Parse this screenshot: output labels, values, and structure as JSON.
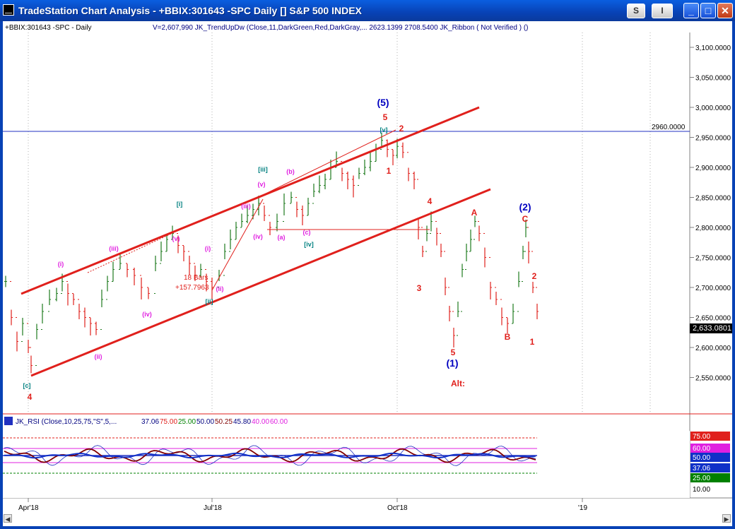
{
  "window": {
    "title": "TradeStation Chart Analysis - +BBIX:301643 -SPC Daily [] S&P 500 INDEX",
    "btn_s": "S",
    "btn_i": "I",
    "btn_min": "_",
    "btn_max": "□",
    "btn_close": "✕"
  },
  "chart_header": {
    "symbol": "+BBIX:301643 -SPC - Daily",
    "indicators": "V=2,607,990   JK_TrendUpDw (Close,11,DarkGreen,Red,DarkGray,...   2623.1399   2708.5400   JK_Ribbon ( Not Verified ) ()"
  },
  "price_axis": {
    "ticks": [
      "3,100.0000",
      "3,050.0000",
      "3,000.0000",
      "2,950.0000",
      "2,900.0000",
      "2,850.0000",
      "2,800.0000",
      "2,750.0000",
      "2,700.0000",
      "2,650.0000",
      "2,600.0000",
      "2,550.0000"
    ],
    "current_price": "2,633.0801",
    "hline_label": "2960.0000"
  },
  "time_axis": {
    "labels": [
      "Apr'18",
      "Jul'18",
      "Oct'18",
      "'19"
    ]
  },
  "wave_labels": [
    {
      "text": "[c]",
      "color": "#008080"
    },
    {
      "text": "4",
      "color": "#E0201C"
    },
    {
      "text": "i",
      "color": "#E020E0"
    },
    {
      "text": "ii",
      "color": "#E020E0"
    },
    {
      "text": "iii",
      "color": "#E020E0"
    },
    {
      "text": "iv",
      "color": "#E020E0"
    },
    {
      "text": "v",
      "color": "#E020E0"
    },
    {
      "text": "[i]",
      "color": "#008080"
    },
    {
      "text": "[ii]",
      "color": "#008080"
    },
    {
      "text": "i",
      "color": "#E020E0"
    },
    {
      "text": "ii",
      "color": "#E020E0"
    },
    {
      "text": "iii",
      "color": "#E020E0"
    },
    {
      "text": "iv",
      "color": "#E020E0"
    },
    {
      "text": "v",
      "color": "#E020E0"
    },
    {
      "text": "[iii]",
      "color": "#008080"
    },
    {
      "text": "a",
      "color": "#E020E0"
    },
    {
      "text": "b",
      "color": "#E020E0"
    },
    {
      "text": "c",
      "color": "#E020E0"
    },
    {
      "text": "[iv]",
      "color": "#008080"
    },
    {
      "text": "[v]",
      "color": "#008080"
    },
    {
      "text": "(5)",
      "color": "#0000C0"
    },
    {
      "text": "5",
      "color": "#E0201C"
    },
    {
      "text": "1",
      "color": "#E0201C"
    },
    {
      "text": "2",
      "color": "#E0201C"
    },
    {
      "text": "3",
      "color": "#E0201C"
    },
    {
      "text": "4",
      "color": "#E0201C"
    },
    {
      "text": "5",
      "color": "#E0201C"
    },
    {
      "text": "(1)",
      "color": "#0000C0"
    },
    {
      "text": "Alt:",
      "color": "#E0201C"
    },
    {
      "text": "A",
      "color": "#E0201C"
    },
    {
      "text": "B",
      "color": "#E0201C"
    },
    {
      "text": "C",
      "color": "#E0201C"
    },
    {
      "text": "(2)",
      "color": "#0000C0"
    },
    {
      "text": "2",
      "color": "#E0201C"
    },
    {
      "text": "1",
      "color": "#E0201C"
    }
  ],
  "measure_note": {
    "line1": "18 Bars",
    "line2": "+157.7963"
  },
  "rsi": {
    "header": "JK_RSI (Close,10,25,75,\"S\",5,...",
    "values": [
      {
        "text": "37.06",
        "color": "#000080"
      },
      {
        "text": "75.00",
        "color": "#E0201C"
      },
      {
        "text": "25.00",
        "color": "#008000"
      },
      {
        "text": "50.00",
        "color": "#000080"
      },
      {
        "text": "50.25",
        "color": "#800000"
      },
      {
        "text": "45.80",
        "color": "#000080"
      },
      {
        "text": "40.00",
        "color": "#E020E0"
      },
      {
        "text": "60.00",
        "color": "#E020E0"
      }
    ],
    "axis_boxes": [
      {
        "text": "75.00",
        "bg": "#E0201C",
        "fg": "#FFFFFF"
      },
      {
        "text": "60.00",
        "bg": "#E020E0",
        "fg": "#FFFFFF"
      },
      {
        "text": "50.00",
        "bg": "#1030C8",
        "fg": "#FFFFFF"
      },
      {
        "text": "37.06",
        "bg": "#1030C8",
        "fg": "#FFFFFF"
      },
      {
        "text": "25.00",
        "bg": "#008000",
        "fg": "#FFFFFF"
      }
    ],
    "axis_tick": "10.00"
  },
  "colors": {
    "bull_bar": "#1E7A1E",
    "bear_bar": "#E0201C",
    "trendline": "#E0201C",
    "hline": "#2030C0"
  }
}
